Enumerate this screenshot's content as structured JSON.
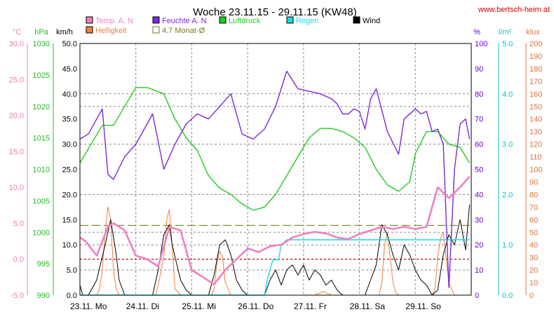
{
  "chart_data": {
    "type": "line",
    "title": "Woche 23.11.15 - 29.11.15 (KW48)",
    "source": "www.bertsch-heim.at",
    "x_labels": [
      "23.11. Mo",
      "24.11. Di",
      "25.11. Mi",
      "26.11. Do",
      "27.11. Fr",
      "28.11. Sa",
      "29.11. So"
    ],
    "axes": [
      {
        "unit": "°C",
        "color": "#e87fb4",
        "min": -5,
        "max": 30,
        "ticks": [
          "30.0",
          "25.0",
          "20.0",
          "15.0",
          "10.0",
          "5.0",
          "0.0",
          "-5.0"
        ]
      },
      {
        "unit": "hPa",
        "color": "#22bb22",
        "min": 990,
        "max": 1030,
        "ticks": [
          "1030",
          "1025",
          "1020",
          "1015",
          "1010",
          "1005",
          "1000",
          "995",
          "990"
        ]
      },
      {
        "unit": "km/h",
        "color": "#000000",
        "min": 0,
        "max": 50,
        "ticks": [
          "50.0",
          "45.0",
          "40.0",
          "35.0",
          "30.0",
          "25.0",
          "20.0",
          "15.0",
          "10.0",
          "5.0",
          "0.0"
        ]
      },
      {
        "unit": "%",
        "color": "#6a00d0",
        "min": 0,
        "max": 100,
        "ticks": [
          "100",
          "90",
          "80",
          "70",
          "60",
          "50",
          "40",
          "30",
          "20",
          "10",
          "0"
        ]
      },
      {
        "unit": "l/m²",
        "color": "#00c8c8",
        "min": 0,
        "max": 5,
        "ticks": [
          "5.0",
          "4.0",
          "3.0",
          "2.0",
          "1.0",
          "0.0"
        ]
      },
      {
        "unit": "klux",
        "color": "#e0703a",
        "min": 0,
        "max": 200,
        "ticks": [
          "200",
          "190",
          "180",
          "170",
          "160",
          "150",
          "140",
          "130",
          "120",
          "110",
          "100",
          "90",
          "80",
          "70",
          "60",
          "50",
          "40",
          "30",
          "20",
          "10",
          "0"
        ]
      }
    ],
    "legend": [
      {
        "name": "Temp. A. N",
        "color": "#f080c0"
      },
      {
        "name": "Feuchte A. N",
        "color": "#7a2ad6"
      },
      {
        "name": "Luftdruck",
        "color": "#22cc22"
      },
      {
        "name": "Regen",
        "color": "#20d8e0"
      },
      {
        "name": "Wind",
        "color": "#000000"
      },
      {
        "name": "Helligkeit",
        "color": "#f08040"
      },
      {
        "name": "4.7 Monat-Ø",
        "color": "#7a7a20"
      }
    ],
    "reference_lines": [
      {
        "series": "4.7 Monat-Ø",
        "axis": "°C",
        "value": 4.7,
        "color": "#8a8a30"
      },
      {
        "series": "freezing",
        "axis": "°C",
        "value": 0.0,
        "color": "#c00000"
      }
    ],
    "series": [
      {
        "name": "Temp. A. N",
        "axis": "°C",
        "color": "#f080c0",
        "x": [
          0,
          0.1,
          0.3,
          0.5,
          0.6,
          0.8,
          1.0,
          1.2,
          1.4,
          1.6,
          1.8,
          2.0,
          2.2,
          2.4,
          2.6,
          2.8,
          3.0,
          3.2,
          3.4,
          3.6,
          3.8,
          4.0,
          4.2,
          4.4,
          4.6,
          4.8,
          5.0,
          5.2,
          5.4,
          5.6,
          5.8,
          6.0,
          6.2,
          6.4,
          6.6,
          6.8,
          6.97
        ],
        "y": [
          3.0,
          2.5,
          0.5,
          4.5,
          5.0,
          4.0,
          0.5,
          0.0,
          -1.0,
          4.5,
          4.0,
          -1.5,
          -2.5,
          -3.5,
          -1.5,
          0.0,
          1.5,
          1.0,
          1.8,
          2.0,
          3.0,
          3.5,
          3.8,
          3.6,
          3.0,
          2.8,
          3.5,
          4.0,
          4.5,
          4.2,
          4.5,
          4.2,
          4.5,
          10.0,
          8.5,
          10.0,
          11.5
        ]
      },
      {
        "name": "Feuchte A. N",
        "axis": "%",
        "color": "#7a2ad6",
        "x": [
          0,
          0.15,
          0.3,
          0.4,
          0.5,
          0.6,
          0.8,
          1.0,
          1.2,
          1.3,
          1.5,
          1.7,
          1.9,
          2.1,
          2.3,
          2.5,
          2.7,
          2.9,
          3.1,
          3.3,
          3.5,
          3.7,
          3.9,
          4.1,
          4.3,
          4.5,
          4.6,
          4.7,
          4.8,
          4.9,
          5.0,
          5.1,
          5.2,
          5.3,
          5.5,
          5.7,
          5.8,
          6.0,
          6.1,
          6.2,
          6.3,
          6.4,
          6.5,
          6.6,
          6.7,
          6.8,
          6.9,
          6.97
        ],
        "y": [
          62,
          64,
          70,
          74,
          48,
          46,
          55,
          60,
          68,
          72,
          50,
          60,
          68,
          72,
          70,
          75,
          80,
          64,
          62,
          66,
          75,
          89,
          82,
          81,
          80,
          78,
          76,
          72,
          72,
          74,
          73,
          66,
          78,
          82,
          65,
          56,
          70,
          74,
          72,
          73,
          65,
          66,
          60,
          3,
          50,
          68,
          70,
          62
        ]
      },
      {
        "name": "Luftdruck",
        "axis": "hPa",
        "color": "#22cc22",
        "x": [
          0,
          0.2,
          0.4,
          0.6,
          0.8,
          1.0,
          1.2,
          1.5,
          1.7,
          1.9,
          2.1,
          2.3,
          2.5,
          2.7,
          2.9,
          3.1,
          3.3,
          3.5,
          3.7,
          3.9,
          4.1,
          4.3,
          4.5,
          4.7,
          4.9,
          5.1,
          5.3,
          5.5,
          5.7,
          5.9,
          6.0,
          6.2,
          6.4,
          6.6,
          6.8,
          6.97
        ],
        "y": [
          1011,
          1014,
          1017,
          1017,
          1020,
          1023,
          1023,
          1022,
          1018,
          1015,
          1013,
          1009,
          1007,
          1006,
          1004.5,
          1003.5,
          1004,
          1006,
          1009,
          1012,
          1015,
          1016.5,
          1016.5,
          1016,
          1015,
          1013.5,
          1010,
          1007.5,
          1006.5,
          1008,
          1012.5,
          1016,
          1016,
          1014,
          1013.5,
          1011
        ]
      },
      {
        "name": "Regen",
        "axis": "l/m²",
        "color": "#20d8e0",
        "x": [
          0,
          3.3,
          3.35,
          3.45,
          3.5,
          3.55,
          3.6,
          3.7,
          4.0,
          5.0,
          6.0,
          6.97
        ],
        "y": [
          0,
          0,
          0.3,
          0.7,
          0.7,
          0.7,
          1.0,
          1.1,
          1.1,
          1.1,
          1.1,
          1.1
        ]
      },
      {
        "name": "Wind",
        "axis": "km/h",
        "color": "#000000",
        "x": [
          0,
          0.05,
          0.15,
          0.3,
          0.45,
          0.55,
          0.65,
          0.7,
          0.8,
          0.9,
          1.3,
          1.4,
          1.5,
          1.6,
          1.65,
          1.8,
          1.9,
          2.0,
          2.3,
          2.4,
          2.5,
          2.6,
          2.7,
          2.8,
          2.9,
          3.0,
          3.1,
          3.3,
          3.4,
          3.5,
          3.6,
          3.7,
          3.8,
          3.9,
          4.0,
          4.1,
          4.2,
          4.3,
          4.4,
          4.5,
          4.6,
          4.7,
          4.8,
          4.9,
          5.0,
          5.1,
          5.2,
          5.3,
          5.4,
          5.5,
          5.6,
          5.7,
          5.8,
          5.9,
          6.0,
          6.1,
          6.2,
          6.3,
          6.4,
          6.5,
          6.6,
          6.7,
          6.8,
          6.9,
          6.97
        ],
        "y": [
          2,
          0,
          0,
          3,
          10,
          15,
          8,
          3,
          0,
          0,
          0,
          5,
          12,
          14,
          10,
          3,
          1,
          0,
          0,
          4,
          10,
          11,
          8,
          3,
          1,
          0,
          0,
          0,
          3,
          5,
          2,
          5,
          6,
          4,
          6,
          3,
          5,
          4,
          2,
          3,
          1,
          0,
          0,
          0,
          0,
          0,
          3,
          6,
          14,
          12,
          8,
          5,
          10,
          8,
          5,
          3,
          2,
          0,
          1,
          8,
          12,
          10,
          15,
          9,
          18
        ]
      },
      {
        "name": "Helligkeit",
        "axis": "klux",
        "color": "#f08040",
        "x": [
          0,
          0.3,
          0.35,
          0.4,
          0.45,
          0.5,
          0.55,
          0.6,
          0.65,
          0.7,
          0.8,
          1.0,
          1.35,
          1.4,
          1.5,
          1.55,
          1.6,
          1.65,
          1.7,
          1.8,
          2.0,
          2.35,
          2.4,
          2.45,
          2.5,
          2.55,
          2.6,
          2.7,
          3.0,
          4.0,
          4.2,
          4.3,
          4.35,
          4.4,
          4.5,
          5.0,
          5.35,
          5.4,
          5.45,
          5.5,
          5.55,
          5.6,
          5.65,
          5.7,
          5.8,
          6.3,
          6.35,
          6.4,
          6.45,
          6.5,
          6.55,
          6.6,
          6.7,
          6.97
        ],
        "y": [
          0,
          0,
          5,
          20,
          50,
          70,
          60,
          20,
          5,
          0,
          0,
          0,
          0,
          8,
          30,
          60,
          68,
          40,
          5,
          0,
          0,
          0,
          5,
          25,
          35,
          30,
          10,
          0,
          0,
          0,
          0,
          2,
          3,
          2,
          0,
          0,
          0,
          10,
          40,
          50,
          30,
          10,
          2,
          0,
          0,
          0,
          5,
          30,
          45,
          50,
          30,
          10,
          0,
          0
        ]
      }
    ]
  }
}
